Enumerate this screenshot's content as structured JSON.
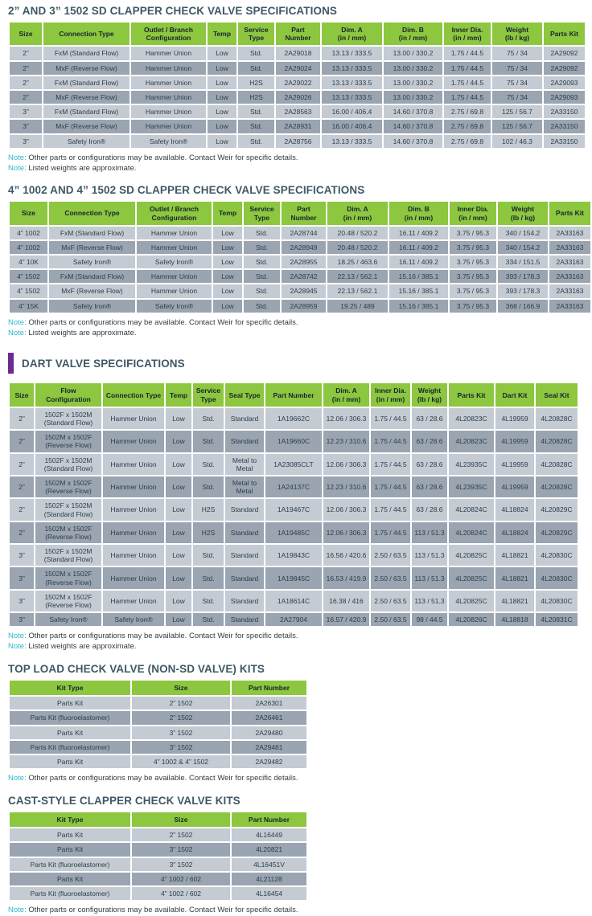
{
  "colors": {
    "header_green": "#8dc63f",
    "row_light": "#c4cbd3",
    "row_dark": "#9aa5b1",
    "title_text": "#3f5866",
    "note_accent": "#2eb8c9",
    "purple_bar": "#6a2c91"
  },
  "notes": {
    "label": "Note:",
    "availability": "Other parts or configurations may be available. Contact Weir for specific details.",
    "weights": "Listed weights are approximate."
  },
  "tables": {
    "sd_2_3": {
      "title": "2” AND 3” 1502 SD CLAPPER CHECK VALVE SPECIFICATIONS",
      "columns": [
        "Size",
        "Connection Type",
        "Outlet / Branch\nConfiguration",
        "Temp",
        "Service\nType",
        "Part\nNumber",
        "Dim. A\n(in / mm)",
        "Dim. B\n(in / mm)",
        "Inner Dia.\n(in / mm)",
        "Weight\n(lb / kg)",
        "Parts Kit"
      ],
      "rows": [
        [
          "2”",
          "FxM (Standard Flow)",
          "Hammer Union",
          "Low",
          "Std.",
          "2A29018",
          "13.13 / 333.5",
          "13.00 / 330.2",
          "1.75 / 44.5",
          "75 / 34",
          "2A29092"
        ],
        [
          "2”",
          "MxF (Reverse Flow)",
          "Hammer Union",
          "Low",
          "Std.",
          "2A29024",
          "13.13 / 333.5",
          "13.00 / 330.2",
          "1.75 / 44.5",
          "75 / 34",
          "2A29092"
        ],
        [
          "2”",
          "FxM (Standard Flow)",
          "Hammer Union",
          "Low",
          "H2S",
          "2A29022",
          "13.13 / 333.5",
          "13.00 / 330.2",
          "1.75 / 44.5",
          "75 / 34",
          "2A29093"
        ],
        [
          "2”",
          "MxF (Reverse Flow)",
          "Hammer Union",
          "Low",
          "H2S",
          "2A29026",
          "13.13 / 333.5",
          "13.00 / 330.2",
          "1.75 / 44.5",
          "75 / 34",
          "2A29093"
        ],
        [
          "3”",
          "FxM (Standard Flow)",
          "Hammer Union",
          "Low",
          "Std.",
          "2A28563",
          "16.00 / 406.4",
          "14.60 / 370.8",
          "2.75 / 69.8",
          "125 / 56.7",
          "2A33150"
        ],
        [
          "3”",
          "MxF (Reverse Flow)",
          "Hammer Union",
          "Low",
          "Std.",
          "2A28931",
          "16.00 / 406.4",
          "14.60 / 370.8",
          "2.75 / 69.8",
          "125 / 56.7",
          "2A33150"
        ],
        [
          "3”",
          "Safety Iron®",
          "Safety Iron®",
          "Low",
          "Std.",
          "2A28756",
          "13.13 / 333.5",
          "14.60 / 370.8",
          "2.75 / 69.8",
          "102 / 46.3",
          "2A33150"
        ]
      ]
    },
    "sd_4": {
      "title": "4” 1002 AND 4” 1502 SD CLAPPER CHECK VALVE SPECIFICATIONS",
      "columns": [
        "Size",
        "Connection Type",
        "Outlet / Branch\nConfiguration",
        "Temp",
        "Service\nType",
        "Part\nNumber",
        "Dim. A\n(in / mm)",
        "Dim. B\n(in / mm)",
        "Inner Dia.\n(in / mm)",
        "Weight\n(lb / kg)",
        "Parts Kit"
      ],
      "rows": [
        [
          "4” 1002",
          "FxM (Standard Flow)",
          "Hammer Union",
          "Low",
          "Std.",
          "2A28744",
          "20.48 / 520.2",
          "16.11 / 409.2",
          "3.75 / 95.3",
          "340 / 154.2",
          "2A33163"
        ],
        [
          "4” 1002",
          "MxF (Reverse Flow)",
          "Hammer Union",
          "Low",
          "Std.",
          "2A28949",
          "20.48 / 520.2",
          "16.11 / 409.2",
          "3.75 / 95.3",
          "340 / 154.2",
          "2A33163"
        ],
        [
          "4” 10K",
          "Safety Iron®",
          "Safety Iron®",
          "Low",
          "Std.",
          "2A28955",
          "18.25 / 463.6",
          "16.11 / 409.2",
          "3.75 / 95.3",
          "334 / 151.5",
          "2A33163"
        ],
        [
          "4” 1502",
          "FxM (Standard Flow)",
          "Hammer Union",
          "Low",
          "Std.",
          "2A28742",
          "22.13 / 562.1",
          "15.16 / 385.1",
          "3.75 / 95.3",
          "393 / 178.3",
          "2A33163"
        ],
        [
          "4” 1502",
          "MxF (Reverse Flow)",
          "Hammer Union",
          "Low",
          "Std.",
          "2A28945",
          "22.13 / 562.1",
          "15.16 / 385.1",
          "3.75 / 95.3",
          "393 / 178.3",
          "2A33163"
        ],
        [
          "4” 15K",
          "Safety Iron®",
          "Safety Iron®",
          "Low",
          "Std.",
          "2A28959",
          "19.25 / 489",
          "15.16 / 385.1",
          "3.75 / 95.3",
          "368 / 166.9",
          "2A33163"
        ]
      ]
    },
    "dart": {
      "title": "DART VALVE SPECIFICATIONS",
      "columns": [
        "Size",
        "Flow\nConfiguration",
        "Connection Type",
        "Temp",
        "Service\nType",
        "Seal Type",
        "Part Number",
        "Dim. A\n(in / mm)",
        "Inner Dia.\n(in / mm)",
        "Weight\n(lb / kg)",
        "Parts Kit",
        "Dart Kit",
        "Seal Kit"
      ],
      "rows": [
        [
          "2”",
          "1502F x 1502M\n(Standard Flow)",
          "Hammer Union",
          "Low",
          "Std.",
          "Standard",
          "1A19662C",
          "12.06 / 306.3",
          "1.75 / 44.5",
          "63 / 28.6",
          "4L20823C",
          "4L19959",
          "4L20828C"
        ],
        [
          "2”",
          "1502M x 1502F\n(Reverse Flow)",
          "Hammer Union",
          "Low",
          "Std.",
          "Standard",
          "1A19660C",
          "12.23 / 310.6",
          "1.75 / 44.5",
          "63 / 28.6",
          "4L20823C",
          "4L19959",
          "4L20828C"
        ],
        [
          "2”",
          "1502F x 1502M\n(Standard Flow)",
          "Hammer Union",
          "Low",
          "Std.",
          "Metal to\nMetal",
          "1A23085CLT",
          "12.06 / 306.3",
          "1.75 / 44.5",
          "63 / 28.6",
          "4L23935C",
          "4L19959",
          "4L20828C"
        ],
        [
          "2”",
          "1502M x 1502F\n(Reverse Flow)",
          "Hammer Union",
          "Low",
          "Std.",
          "Metal to\nMetal",
          "1A24137C",
          "12.23 / 310.6",
          "1.75 / 44.5",
          "63 / 28.6",
          "4L23935C",
          "4L19959",
          "4L20828C"
        ],
        [
          "2”",
          "1502F x 1502M\n(Standard Flow)",
          "Hammer Union",
          "Low",
          "H2S",
          "Standard",
          "1A19467C",
          "12.06 / 306.3",
          "1.75 / 44.5",
          "63 / 28.6",
          "4L20824C",
          "4L18824",
          "4L20829C"
        ],
        [
          "2”",
          "1502M x 1502F\n(Reverse Flow)",
          "Hammer Union",
          "Low",
          "H2S",
          "Standard",
          "1A19485C",
          "12.06 / 306.3",
          "1.75 / 44.5",
          "113 / 51.3",
          "4L20824C",
          "4L18824",
          "4L20829C"
        ],
        [
          "3”",
          "1502F x 1502M\n(Standard Flow)",
          "Hammer Union",
          "Low",
          "Std.",
          "Standard",
          "1A19843C",
          "16.56 / 420.6",
          "2.50 / 63.5",
          "113 / 51.3",
          "4L20825C",
          "4L18821",
          "4L20830C"
        ],
        [
          "3”",
          "1502M x 1502F\n(Reverse Flow)",
          "Hammer Union",
          "Low",
          "Std.",
          "Standard",
          "1A19845C",
          "16.53 / 419.9",
          "2.50 / 63.5",
          "113 / 51.3",
          "4L20825C",
          "4L18821",
          "4L20830C"
        ],
        [
          "3”",
          "1502M x 1502F\n(Reverse Flow)",
          "Hammer Union",
          "Low",
          "Std.",
          "Standard",
          "1A18614C",
          "16.38 / 416",
          "2.50 / 63.5",
          "113 / 51.3",
          "4L20825C",
          "4L18821",
          "4L20830C"
        ],
        [
          "3”",
          "Safety Iron®",
          "Safety Iron®",
          "Low",
          "Std.",
          "Standard",
          "2A27904",
          "16.57 / 420.9",
          "2.50 / 63.5",
          "98 / 44.5",
          "4L20826C",
          "4L18818",
          "4L20831C"
        ]
      ]
    },
    "top_load": {
      "title": "TOP LOAD CHECK VALVE (NON-SD VALVE) KITS",
      "columns": [
        "Kit Type",
        "Size",
        "Part Number"
      ],
      "rows": [
        [
          "Parts Kit",
          "2” 1502",
          "2A26301"
        ],
        [
          "Parts Kit (fluoroelastomer)",
          "2” 1502",
          "2A26461"
        ],
        [
          "Parts Kit",
          "3” 1502",
          "2A29480"
        ],
        [
          "Parts Kit (fluoroelastomer)",
          "3” 1502",
          "2A29481"
        ],
        [
          "Parts Kit",
          "4” 1002 & 4” 1502",
          "2A29482"
        ]
      ]
    },
    "cast_style": {
      "title": "CAST-STYLE CLAPPER CHECK VALVE KITS",
      "columns": [
        "Kit Type",
        "Size",
        "Part Number"
      ],
      "rows": [
        [
          "Parts Kit",
          "2” 1502",
          "4L16449"
        ],
        [
          "Parts Kit",
          "3” 1502",
          "4L20821"
        ],
        [
          "Parts Kit (fluoroelastomer)",
          "3” 1502",
          "4L16451V"
        ],
        [
          "Parts Kit",
          "4” 1002 / 602",
          "4L21128"
        ],
        [
          "Parts Kit (fluoroelastomer)",
          "4” 1002 / 602",
          "4L16454"
        ]
      ]
    }
  }
}
